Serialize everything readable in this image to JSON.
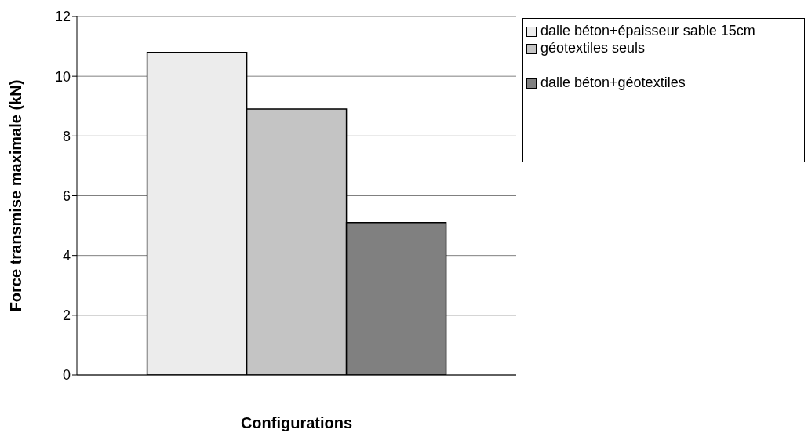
{
  "chart_data": {
    "type": "bar",
    "xlabel": "Configurations",
    "ylabel": "Force transmise maximale (kN)",
    "categories": [
      null
    ],
    "series": [
      {
        "name": "dalle béton+épaisseur sable 15cm",
        "color": "#ececec",
        "values": [
          10.8
        ]
      },
      {
        "name": "géotextiles seuls",
        "color": "#c4c4c4",
        "values": [
          8.9
        ]
      },
      {
        "name": "dalle béton+géotextiles",
        "color": "#808080",
        "values": [
          5.1
        ]
      }
    ],
    "ylim": [
      0,
      12
    ],
    "yticks": [
      0,
      2,
      4,
      6,
      8,
      10,
      12
    ],
    "grid": "y",
    "legend": "top right"
  }
}
